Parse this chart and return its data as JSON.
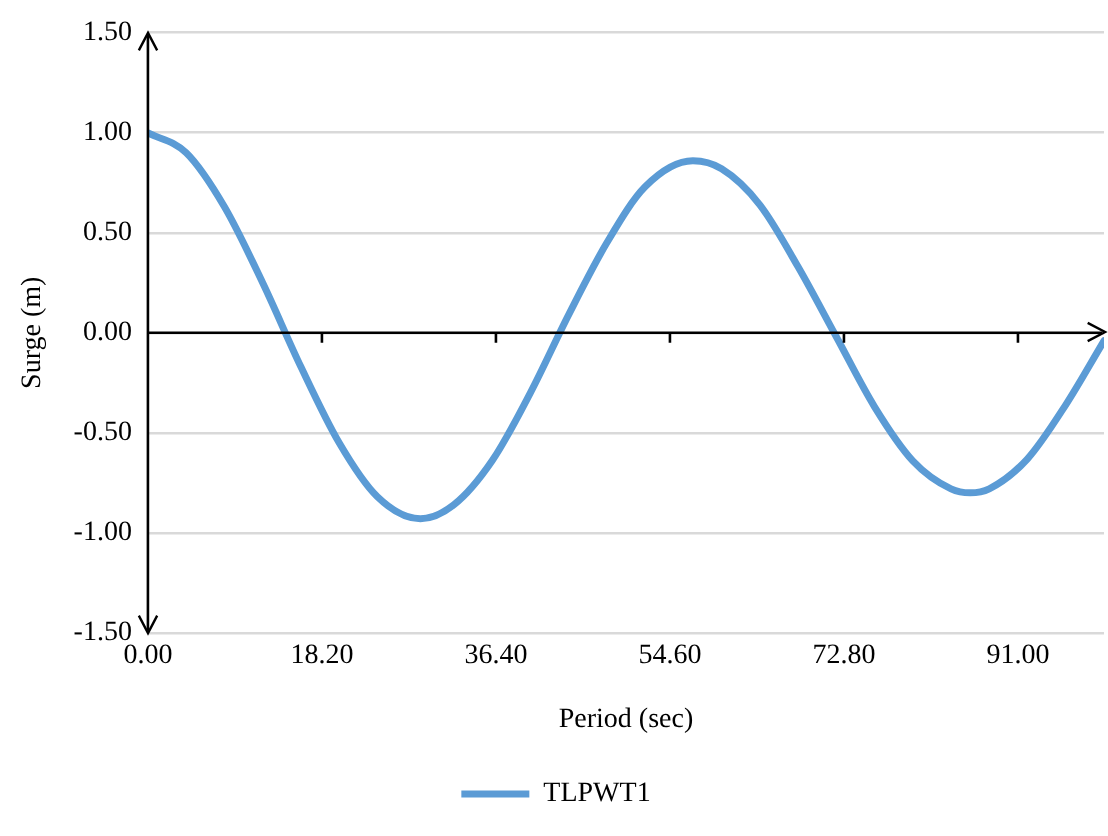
{
  "chart_data": {
    "type": "line",
    "xlabel": "Period (sec)",
    "ylabel": "Surge (m)",
    "series": [
      {
        "name": "TLPWT1",
        "color": "#5b9bd5",
        "x": [
          0,
          4,
          8,
          12,
          16,
          20,
          24,
          28.5,
          32,
          36,
          40,
          44,
          48,
          52,
          57,
          60,
          64,
          68,
          72,
          76,
          80,
          84,
          86,
          88,
          92,
          96,
          100
        ],
        "values": [
          1.0,
          0.9,
          0.63,
          0.25,
          -0.17,
          -0.55,
          -0.82,
          -0.93,
          -0.86,
          -0.64,
          -0.3,
          0.09,
          0.45,
          0.73,
          0.86,
          0.82,
          0.64,
          0.33,
          -0.02,
          -0.37,
          -0.64,
          -0.78,
          -0.8,
          -0.78,
          -0.63,
          -0.36,
          -0.04
        ]
      }
    ],
    "xlim": [
      0,
      100
    ],
    "xticks": [
      {
        "value": 0,
        "label": "0.00"
      },
      {
        "value": 18.2,
        "label": "18.20"
      },
      {
        "value": 36.4,
        "label": "36.40"
      },
      {
        "value": 54.6,
        "label": "54.60"
      },
      {
        "value": 72.8,
        "label": "72.80"
      },
      {
        "value": 91,
        "label": "91.00"
      }
    ],
    "ylim": [
      -1.5,
      1.5
    ],
    "yticks": [
      {
        "value": -1.5,
        "label": "-1.50"
      },
      {
        "value": -1,
        "label": "-1.00"
      },
      {
        "value": -0.5,
        "label": "-0.50"
      },
      {
        "value": 0,
        "label": "0.00"
      },
      {
        "value": 0.5,
        "label": "0.50"
      },
      {
        "value": 1,
        "label": "1.00"
      },
      {
        "value": 1.5,
        "label": "1.50"
      }
    ],
    "grid": "y",
    "legend": "bottom",
    "marker": "none",
    "line_style": "solid"
  }
}
